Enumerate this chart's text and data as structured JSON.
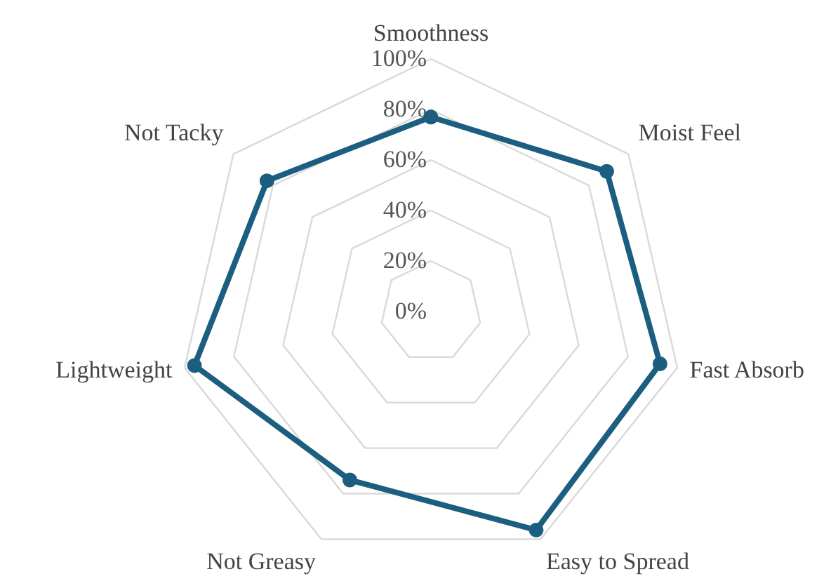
{
  "chart_data": {
    "type": "radar",
    "categories": [
      "Smoothness",
      "Moist Feel",
      "Fast Absorb",
      "Easy to Spread",
      "Not Greasy",
      "Lightweight",
      "Not Tacky"
    ],
    "series": [
      {
        "color": "#1b5e80",
        "values": [
          77,
          89,
          93,
          96,
          74,
          96,
          83
        ]
      }
    ],
    "ylim": [
      0,
      100
    ],
    "yticks": [
      {
        "value": 0,
        "label": "0%"
      },
      {
        "value": 20,
        "label": "20%"
      },
      {
        "value": 40,
        "label": "40%"
      },
      {
        "value": 60,
        "label": "60%"
      },
      {
        "value": 80,
        "label": "80%"
      },
      {
        "value": 100,
        "label": "100%"
      }
    ],
    "grid": true,
    "marker": "circle"
  }
}
